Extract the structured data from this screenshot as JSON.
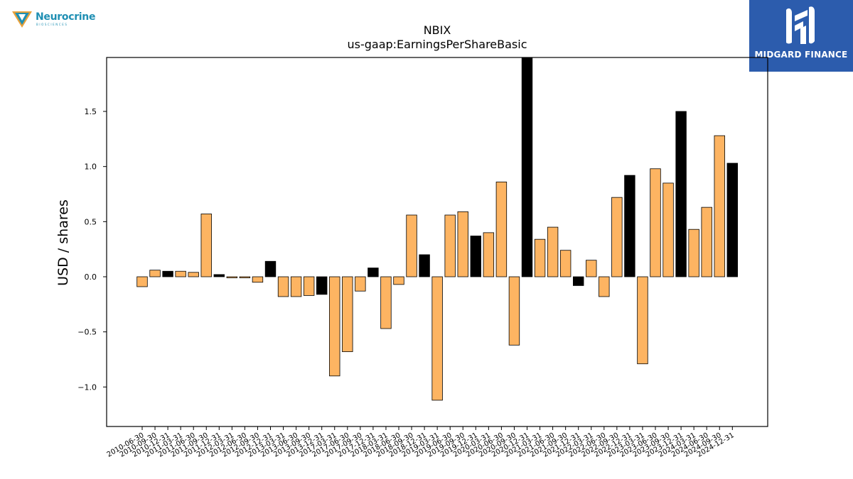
{
  "header": {
    "left_logo_name": "Neurocrine",
    "left_logo_sub": "BIOSCIENCES",
    "right_logo_name": "MIDGARD FINANCE"
  },
  "chart_data": {
    "type": "bar",
    "title": "NBIX",
    "subtitle": "us-gaap:EarningsPerShareBasic",
    "xlabel": "",
    "ylabel": "USD / shares",
    "ylim": [
      -1.35,
      1.98
    ],
    "yticks": [
      -1.0,
      -0.5,
      0.0,
      0.5,
      1.0,
      1.5
    ],
    "ytick_labels": [
      "−1.0",
      "−0.5",
      "0.0",
      "0.5",
      "1.0",
      "1.5"
    ],
    "grid": false,
    "colors": {
      "quarter": "#fdb462",
      "annual": "#000000",
      "edge": "#000000"
    },
    "categories": [
      "2010-06-30",
      "2010-09-30",
      "2010-12-31",
      "2011-03-31",
      "2011-06-30",
      "2011-09-30",
      "2011-12-31",
      "2012-03-31",
      "2012-06-30",
      "2012-09-30",
      "2012-12-31",
      "2013-03-31",
      "2013-06-30",
      "2013-09-30",
      "2013-12-31",
      "2017-03-31",
      "2017-06-30",
      "2017-09-30",
      "2017-12-31",
      "2018-03-31",
      "2018-06-30",
      "2018-09-30",
      "2018-12-31",
      "2019-03-31",
      "2019-06-30",
      "2019-09-30",
      "2019-12-31",
      "2020-03-31",
      "2020-06-30",
      "2020-09-30",
      "2020-12-31",
      "2021-03-31",
      "2021-06-30",
      "2021-09-30",
      "2021-12-31",
      "2022-03-31",
      "2022-06-30",
      "2022-09-30",
      "2022-12-31",
      "2023-03-31",
      "2023-06-30",
      "2023-09-30",
      "2023-12-31",
      "2024-03-31",
      "2024-06-30",
      "2024-09-30",
      "2024-12-31"
    ],
    "values": [
      -0.09,
      0.06,
      0.05,
      0.05,
      0.04,
      0.57,
      0.02,
      -0.01,
      -0.01,
      -0.05,
      0.14,
      -0.18,
      -0.18,
      -0.17,
      -0.16,
      -0.9,
      -0.68,
      -0.13,
      0.08,
      -0.47,
      -0.07,
      0.56,
      0.2,
      -1.12,
      0.56,
      0.59,
      0.37,
      0.4,
      0.86,
      -0.62,
      2.0,
      0.34,
      0.45,
      0.24,
      -0.08,
      0.15,
      -0.18,
      0.72,
      0.92,
      -0.79,
      0.98,
      0.85,
      1.5,
      0.43,
      0.63,
      1.28,
      1.03
    ],
    "annual": [
      false,
      false,
      true,
      false,
      false,
      false,
      true,
      false,
      false,
      false,
      true,
      false,
      false,
      false,
      true,
      false,
      false,
      false,
      true,
      false,
      false,
      false,
      true,
      false,
      false,
      false,
      true,
      false,
      false,
      false,
      true,
      false,
      false,
      false,
      true,
      false,
      false,
      false,
      true,
      false,
      false,
      false,
      true,
      false,
      false,
      false,
      true
    ]
  }
}
